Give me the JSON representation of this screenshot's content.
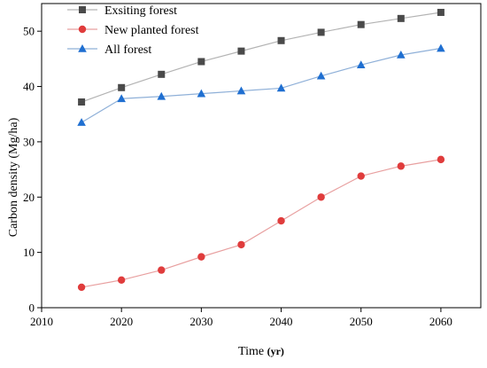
{
  "chart_data": {
    "type": "line",
    "title": "",
    "xlabel": "Time",
    "xlabel_unit": "(yr)",
    "ylabel": "Carbon density (Mg/ha)",
    "xlim": [
      2010,
      2065
    ],
    "ylim": [
      0,
      55
    ],
    "xticks": [
      2010,
      2020,
      2030,
      2040,
      2050,
      2060
    ],
    "yticks": [
      0,
      10,
      20,
      30,
      40,
      50
    ],
    "grid": false,
    "legend": "top-left",
    "x": [
      2015,
      2020,
      2025,
      2030,
      2035,
      2040,
      2045,
      2050,
      2055,
      2060
    ],
    "series": [
      {
        "name": "Exsiting forest",
        "marker": "square",
        "line_color": "#b3b3b3",
        "marker_color": "#4a4a4a",
        "values": [
          37.2,
          39.8,
          42.2,
          44.5,
          46.4,
          48.3,
          49.8,
          51.2,
          52.3,
          53.4
        ]
      },
      {
        "name": "New planted forest",
        "marker": "circle",
        "line_color": "#e8a0a0",
        "marker_color": "#e03c3c",
        "values": [
          3.7,
          5.0,
          6.8,
          9.2,
          11.4,
          15.7,
          20.0,
          23.8,
          25.6,
          26.8
        ]
      },
      {
        "name": "All forest",
        "marker": "triangle",
        "line_color": "#8fb0d8",
        "marker_color": "#1f6fd1",
        "values": [
          33.5,
          37.8,
          38.2,
          38.7,
          39.2,
          39.7,
          41.9,
          43.9,
          45.7,
          46.9
        ]
      }
    ]
  }
}
